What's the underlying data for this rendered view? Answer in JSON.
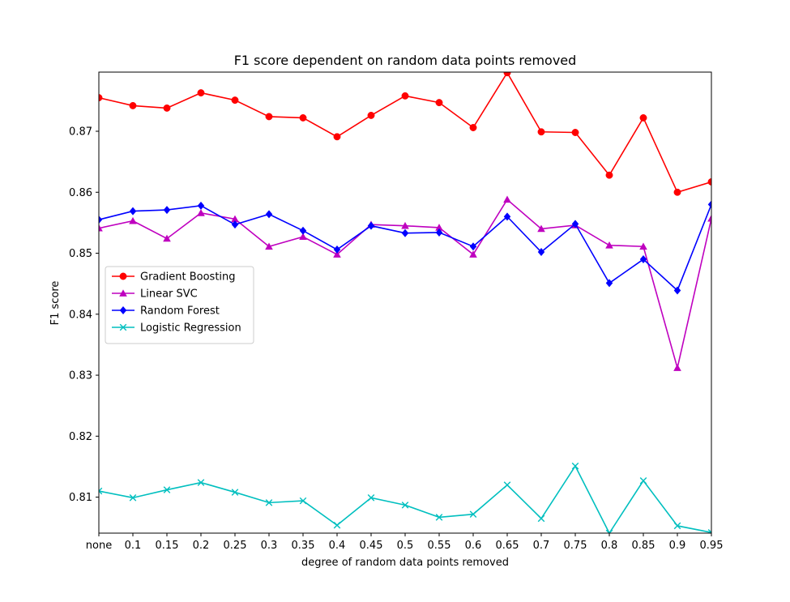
{
  "chart_data": {
    "type": "line",
    "title": "F1 score dependent on random data points removed",
    "xlabel": "degree of random data points removed",
    "ylabel": "F1 score",
    "categories": [
      "none",
      "0.1",
      "0.15",
      "0.2",
      "0.25",
      "0.3",
      "0.35",
      "0.4",
      "0.45",
      "0.5",
      "0.55",
      "0.6",
      "0.65",
      "0.7",
      "0.75",
      "0.8",
      "0.85",
      "0.9",
      "0.95"
    ],
    "ylim": [
      0.8041,
      0.8797
    ],
    "yticks": [
      0.81,
      0.82,
      0.83,
      0.84,
      0.85,
      0.86,
      0.87
    ],
    "ytick_labels": [
      "0.81",
      "0.82",
      "0.83",
      "0.84",
      "0.85",
      "0.86",
      "0.87"
    ],
    "grid": false,
    "legend": {
      "placement": "center-left"
    },
    "series": [
      {
        "name": "Gradient Boosting",
        "color": "#ff0000",
        "marker": "circle",
        "values": [
          0.8755,
          0.8742,
          0.8738,
          0.8763,
          0.8751,
          0.8724,
          0.8722,
          0.8691,
          0.8726,
          0.8758,
          0.8747,
          0.8706,
          0.8796,
          0.8699,
          0.8698,
          0.8628,
          0.8722,
          0.86,
          0.8617
        ]
      },
      {
        "name": "Linear SVC",
        "color": "#bf00bf",
        "marker": "triangle",
        "values": [
          0.8541,
          0.8553,
          0.8524,
          0.8566,
          0.8556,
          0.8511,
          0.8527,
          0.8498,
          0.8547,
          0.8545,
          0.8542,
          0.8498,
          0.8588,
          0.854,
          0.8546,
          0.8513,
          0.8511,
          0.8312,
          0.8557
        ]
      },
      {
        "name": "Random Forest",
        "color": "#0000ff",
        "marker": "diamond",
        "values": [
          0.8555,
          0.8569,
          0.8571,
          0.8578,
          0.8547,
          0.8564,
          0.8537,
          0.8506,
          0.8545,
          0.8533,
          0.8534,
          0.8511,
          0.856,
          0.8502,
          0.8548,
          0.8451,
          0.849,
          0.8439,
          0.858
        ]
      },
      {
        "name": "Logistic Regression",
        "color": "#00bfbf",
        "marker": "x",
        "values": [
          0.811,
          0.8099,
          0.8112,
          0.8124,
          0.8108,
          0.8091,
          0.8094,
          0.8054,
          0.8099,
          0.8087,
          0.8067,
          0.8072,
          0.812,
          0.8065,
          0.8151,
          0.8041,
          0.8127,
          0.8053,
          0.8042
        ]
      }
    ]
  }
}
